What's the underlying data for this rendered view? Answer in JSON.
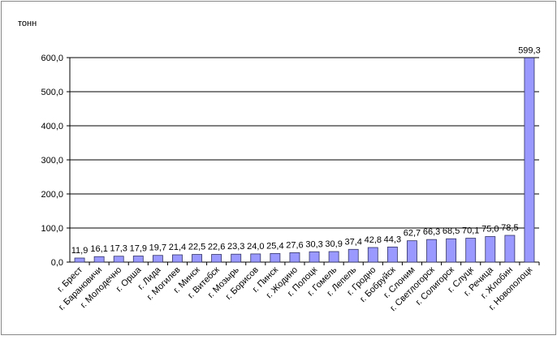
{
  "chart_data": {
    "type": "bar",
    "y_axis_label": "тонн",
    "categories": [
      "г. Брест",
      "г. Барановичи",
      "г. Молодечно",
      "г. Орша",
      "г. Лида",
      "г. Могилев",
      "г. Минск",
      "г. Витебск",
      "г. Мозырь",
      "г. Борисов",
      "г. Пинск",
      "г. Жодино",
      "г. Полоцк",
      "г. Гомель",
      "г. Лепель",
      "г. Гродно",
      "г. Бобруйск",
      "г. Слоним",
      "г. Светлогорск",
      "г. Солигорск",
      "г. Слуцк",
      "г. Речица",
      "г. Жлобин",
      "г. Новополоцк"
    ],
    "values": [
      11.9,
      16.1,
      17.3,
      17.9,
      19.7,
      21.4,
      22.5,
      22.6,
      23.3,
      24.0,
      25.4,
      27.6,
      30.3,
      30.9,
      37.4,
      42.8,
      44.3,
      62.7,
      66.3,
      68.5,
      70.1,
      75.0,
      78.5,
      599.3
    ],
    "value_labels": [
      "11,9",
      "16,1",
      "17,3",
      "17,9",
      "19,7",
      "21,4",
      "22,5",
      "22,6",
      "23,3",
      "24,0",
      "25,4",
      "27,6",
      "30,3",
      "30,9",
      "37,4",
      "42,8",
      "44,3",
      "62,7",
      "66,3",
      "68,5",
      "70,1",
      "75,0",
      "78,5",
      "599,3"
    ],
    "color": "#9999ff",
    "ylim": [
      0,
      600
    ],
    "yticks": [
      {
        "value": 0,
        "label": "0,0"
      },
      {
        "value": 100,
        "label": "100,0"
      },
      {
        "value": 200,
        "label": "200,0"
      },
      {
        "value": 300,
        "label": "300,0"
      },
      {
        "value": 400,
        "label": "400,0"
      },
      {
        "value": 500,
        "label": "500,0"
      },
      {
        "value": 600,
        "label": "600,0"
      }
    ],
    "grid": true
  }
}
